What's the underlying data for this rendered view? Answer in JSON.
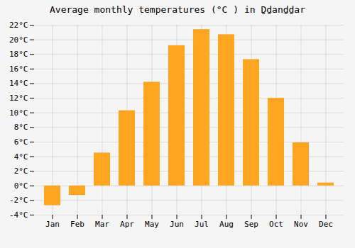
{
  "chart_data": {
    "type": "bar",
    "title": "Average monthly temperatures (°C ) in Ḏḏanḏḏar",
    "categories": [
      "Jan",
      "Feb",
      "Mar",
      "Apr",
      "May",
      "Jun",
      "Jul",
      "Aug",
      "Sep",
      "Oct",
      "Nov",
      "Dec"
    ],
    "values": [
      -2.7,
      -1.3,
      4.5,
      10.3,
      14.2,
      19.2,
      21.4,
      20.7,
      17.3,
      12.0,
      5.9,
      0.4
    ],
    "color": "#FFA520",
    "ylim": [
      -4,
      22
    ],
    "yticks": [
      {
        "value": -4,
        "label": "-4°C"
      },
      {
        "value": -2,
        "label": "-2°C"
      },
      {
        "value": 0,
        "label": "0°C"
      },
      {
        "value": 2,
        "label": "2°C"
      },
      {
        "value": 4,
        "label": "4°C"
      },
      {
        "value": 6,
        "label": "6°C"
      },
      {
        "value": 8,
        "label": "8°C"
      },
      {
        "value": 10,
        "label": "10°C"
      },
      {
        "value": 12,
        "label": "12°C"
      },
      {
        "value": 14,
        "label": "14°C"
      },
      {
        "value": 16,
        "label": "16°C"
      },
      {
        "value": 18,
        "label": "18°C"
      },
      {
        "value": 20,
        "label": "20°C"
      },
      {
        "value": 22,
        "label": "22°C"
      }
    ],
    "grid": true
  }
}
